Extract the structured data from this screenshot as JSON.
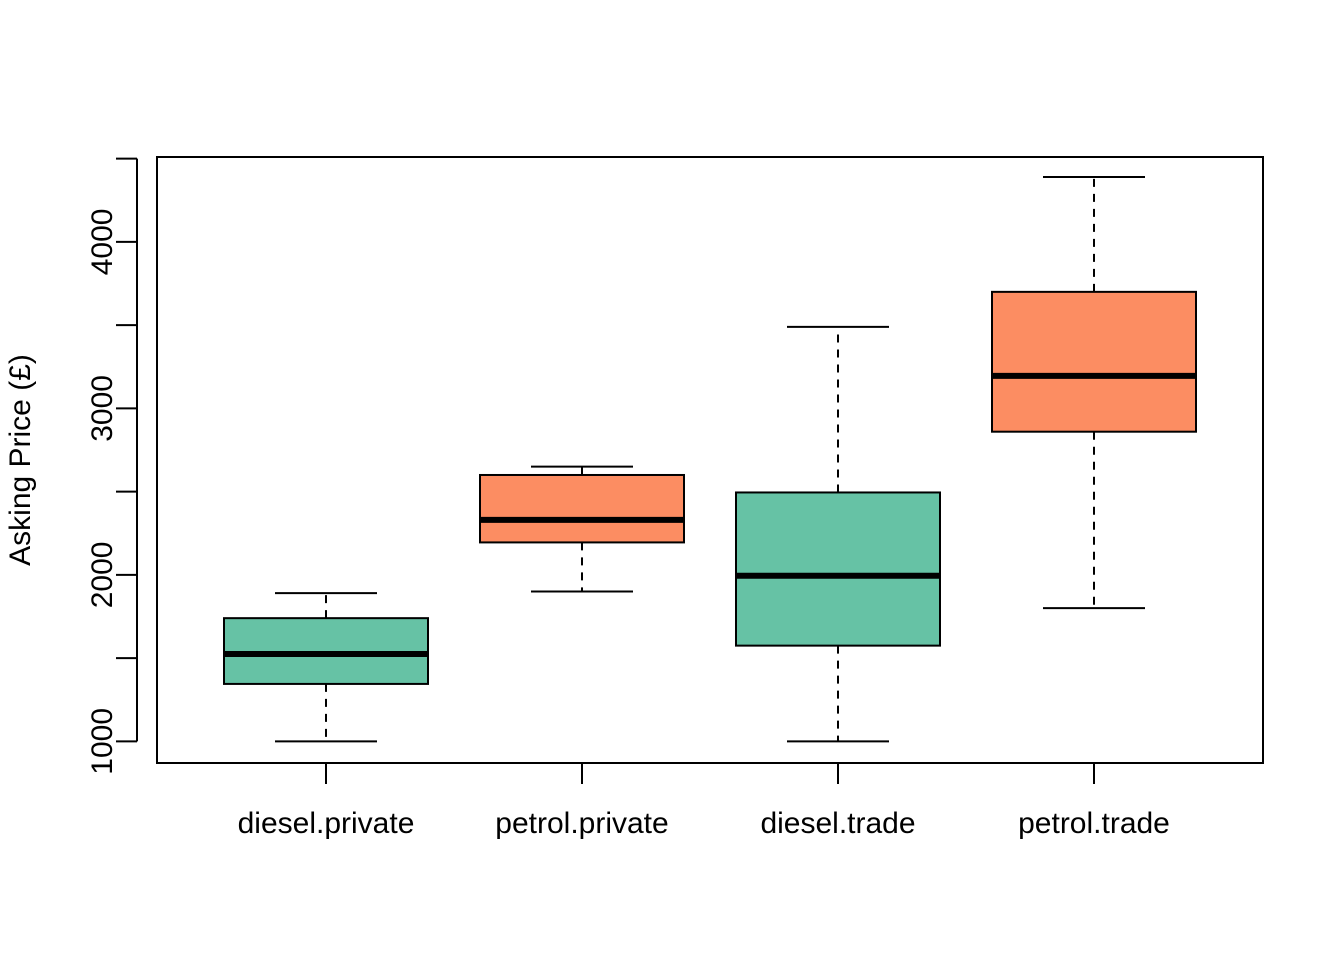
{
  "chart_data": {
    "type": "boxplot",
    "title": "",
    "xlabel": "",
    "ylabel": "Asking Price (£)",
    "ylim": [
      870,
      4510
    ],
    "y_ticks": [
      1000,
      1500,
      2000,
      2500,
      3000,
      3500,
      4000,
      4500
    ],
    "y_tick_labels": [
      "1000",
      "",
      "2000",
      "",
      "3000",
      "",
      "4000",
      ""
    ],
    "grid": false,
    "legend": "none",
    "categories": [
      "diesel.private",
      "petrol.private",
      "diesel.trade",
      "petrol.trade"
    ],
    "boxes": [
      {
        "category": "diesel.private",
        "min": 1000,
        "q1": 1345,
        "median": 1525,
        "q3": 1740,
        "max": 1890,
        "color": "#66c2a5"
      },
      {
        "category": "petrol.private",
        "min": 1900,
        "q1": 2195,
        "median": 2330,
        "q3": 2600,
        "max": 2650,
        "color": "#fc8d62"
      },
      {
        "category": "diesel.trade",
        "min": 1000,
        "q1": 1575,
        "median": 1995,
        "q3": 2495,
        "max": 3490,
        "color": "#66c2a5"
      },
      {
        "category": "petrol.trade",
        "min": 1800,
        "q1": 2860,
        "median": 3195,
        "q3": 3700,
        "max": 4390,
        "color": "#fc8d62"
      }
    ]
  }
}
